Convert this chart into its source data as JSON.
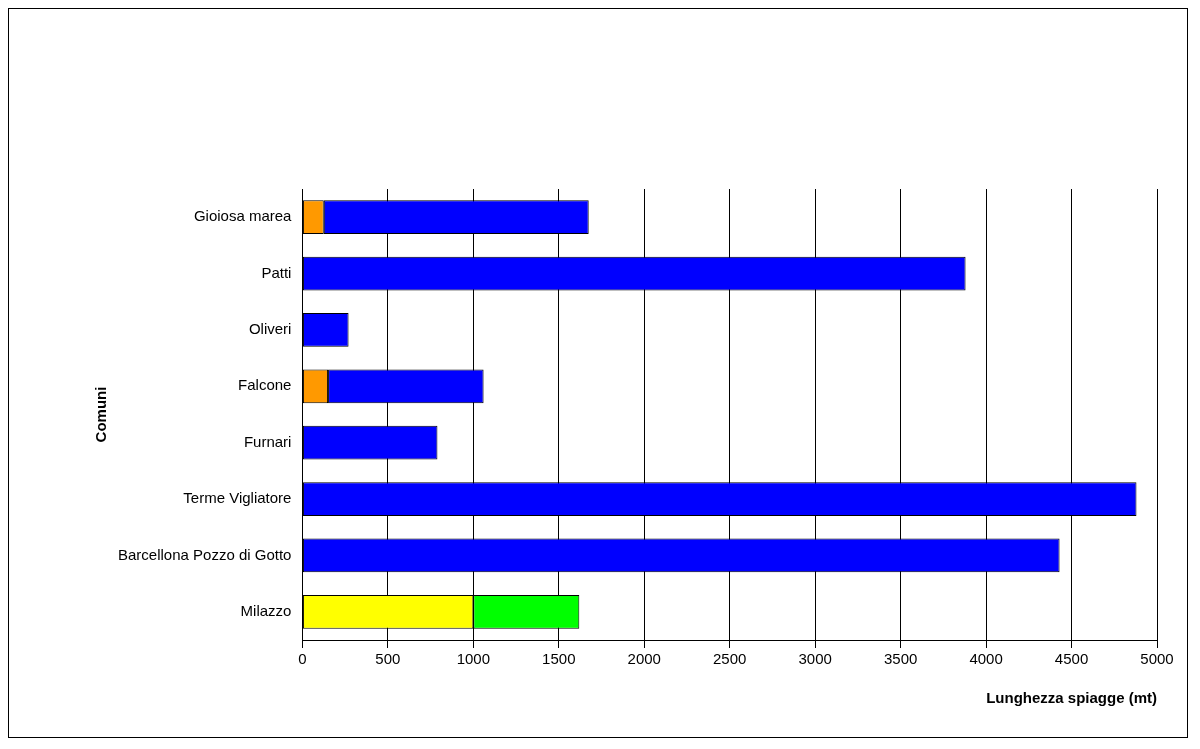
{
  "chart_data": {
    "type": "bar",
    "orientation": "horizontal",
    "stacked": true,
    "categories": [
      "Gioiosa marea",
      "Patti",
      "Oliveri",
      "Falcone",
      "Furnari",
      "Terme Vigliatore",
      "Barcellona Pozzo di Gotto",
      "Milazzo"
    ],
    "series": [
      {
        "color": "#ffff00",
        "values": [
          null,
          null,
          null,
          null,
          null,
          null,
          null,
          1000
        ]
      },
      {
        "color": "#ff9900",
        "values": [
          125,
          null,
          null,
          150,
          null,
          null,
          null,
          null
        ]
      },
      {
        "color": "#00ff00",
        "values": [
          null,
          null,
          null,
          null,
          null,
          null,
          null,
          620
        ]
      },
      {
        "color": "#0000ff",
        "values": [
          1550,
          3880,
          270,
          910,
          790,
          4880,
          4430,
          null
        ]
      }
    ],
    "xlim": [
      0,
      5000
    ],
    "xticks": [
      0,
      500,
      1000,
      1500,
      2000,
      2500,
      3000,
      3500,
      4000,
      4500,
      5000
    ],
    "xlabel": "Lunghezza spiagge (mt)",
    "ylabel": "Comuni",
    "grid": "x",
    "legend": false
  }
}
